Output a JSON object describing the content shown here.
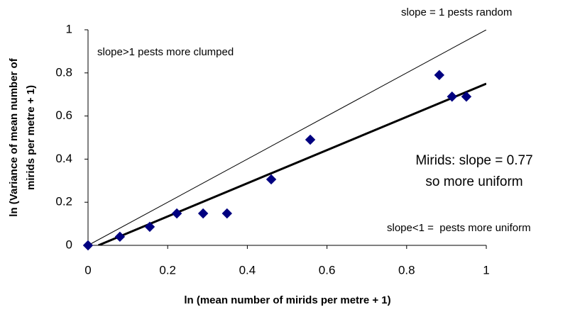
{
  "chart_data": {
    "type": "scatter",
    "xlabel": "ln (mean number of mirids per metre + 1)",
    "ylabel": [
      "ln (Variance of mean number of",
      "mirids per metre + 1)"
    ],
    "x": [
      0,
      0.08,
      0.155,
      0.223,
      0.289,
      0.349,
      0.46,
      0.558,
      0.882,
      0.914,
      0.95
    ],
    "values": [
      0,
      0.04,
      0.086,
      0.148,
      0.148,
      0.148,
      0.306,
      0.49,
      0.79,
      0.69,
      0.69
    ],
    "color": "#000080",
    "lines": [
      {
        "x": [
          0,
          1
        ],
        "values": [
          0,
          1
        ],
        "color": "#000000",
        "width": 1
      },
      {
        "x": [
          0.026,
          1
        ],
        "values": [
          0,
          0.75
        ],
        "color": "#000000",
        "width": 3
      }
    ],
    "xlim": [
      0,
      1
    ],
    "xticks": [
      0,
      0.2,
      0.4,
      0.6,
      0.8,
      1
    ],
    "ylim": [
      0,
      1
    ],
    "yticks": [
      0,
      0.2,
      0.4,
      0.6,
      0.8,
      1
    ],
    "grid": false,
    "annotations": [
      "slope = 1 pests random",
      "slope>1 pests more clumped",
      "Mirids: slope = 0.77",
      "so more uniform",
      "slope<1 =  pests more uniform"
    ]
  }
}
